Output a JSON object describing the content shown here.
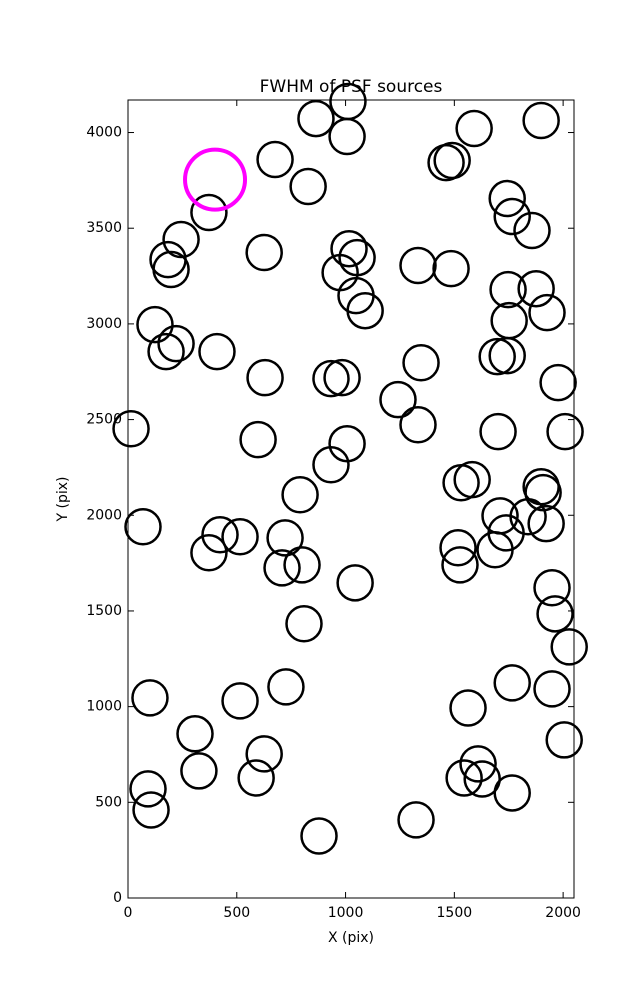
{
  "chart_data": {
    "type": "scatter",
    "title": "FWHM of PSF sources",
    "xlabel": "X (pix)",
    "ylabel": "Y (pix)",
    "xlim": [
      0,
      2050
    ],
    "ylim": [
      0,
      4170
    ],
    "xticks": [
      0,
      500,
      1000,
      1500,
      2000
    ],
    "yticks": [
      0,
      500,
      1000,
      1500,
      2000,
      2500,
      3000,
      3500,
      4000
    ],
    "grid": false,
    "series": [
      {
        "color": "#000000",
        "x": [
          14,
          69,
          124,
          184,
          198,
          221,
          175,
          244,
          372,
          409,
          92,
          106,
          101,
          308,
          326,
          423,
          372,
          515,
          515,
          626,
          676,
          630,
          598,
          626,
          589,
          722,
          708,
          726,
          800,
          809,
          791,
          828,
          864,
          878,
          1011,
          1007,
          1016,
          975,
          1053,
          1048,
          1090,
          933,
          984,
          1007,
          933,
          1044,
          1241,
          1333,
          1347,
          1333,
          1485,
          1462,
          1490,
          1591,
          1324,
          1517,
          1526,
          1531,
          1582,
          1563,
          1545,
          1609,
          1628,
          1701,
          1687,
          1710,
          1738,
          1697,
          1743,
          1743,
          1766,
          1747,
          1752,
          1857,
          1876,
          1899,
          1766,
          1766,
          1839,
          1899,
          1908,
          1922,
          1926,
          1977,
          2009,
          1949,
          1963,
          2028,
          1949,
          2005
        ],
        "y": [
          2452,
          1940,
          2996,
          3336,
          3284,
          2897,
          2855,
          3441,
          3582,
          2855,
          570,
          460,
          1046,
          858,
          664,
          1898,
          1804,
          1888,
          1030,
          3373,
          3859,
          2719,
          2395,
          753,
          627,
          1882,
          1725,
          1103,
          1741,
          1433,
          2107,
          3718,
          4073,
          324,
          4162,
          3979,
          3393,
          3268,
          3346,
          3148,
          3069,
          2714,
          2719,
          2374,
          2264,
          1647,
          2604,
          2473,
          2797,
          3305,
          3289,
          3843,
          3854,
          4021,
          408,
          1830,
          1741,
          2170,
          2186,
          993,
          627,
          701,
          622,
          2437,
          1820,
          1997,
          1908,
          2829,
          2834,
          3655,
          3561,
          3179,
          3017,
          3488,
          3184,
          4063,
          1124,
          549,
          1992,
          2149,
          2118,
          1956,
          3059,
          2693,
          2437,
          1621,
          1485,
          1312,
          1093,
          826
        ]
      },
      {
        "color": "#ff00ff",
        "x": [
          400
        ],
        "y": [
          3754
        ]
      }
    ]
  }
}
